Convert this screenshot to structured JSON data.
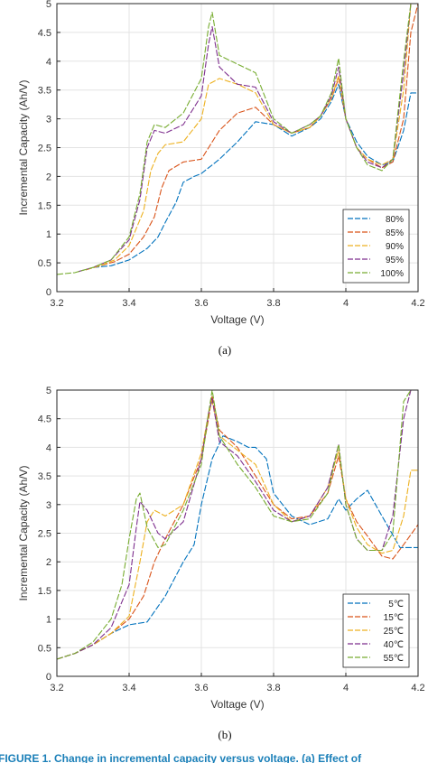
{
  "figure": {
    "caption": "FIGURE 1. Change in incremental capacity versus voltage. (a) Effect of"
  },
  "chart_data": [
    {
      "type": "line",
      "panel_label": "(a)",
      "xlabel": "Voltage (V)",
      "ylabel": "Incremental Capacity (Ah/V)",
      "xlim": [
        3.2,
        4.2
      ],
      "ylim": [
        0,
        5
      ],
      "xticks": [
        3.2,
        3.4,
        3.6,
        3.8,
        4,
        4.2
      ],
      "xtick_labels": [
        "3.2",
        "3.4",
        "3.6",
        "3.8",
        "4",
        "4.2"
      ],
      "yticks": [
        0,
        0.5,
        1,
        1.5,
        2,
        2.5,
        3,
        3.5,
        4,
        4.5,
        5
      ],
      "ytick_labels": [
        "0",
        "0.5",
        "1",
        "1.5",
        "2",
        "2.5",
        "3",
        "3.5",
        "4",
        "4.5",
        "5"
      ],
      "grid": true,
      "legend_position": "bottom-right",
      "series": [
        {
          "name": "80%",
          "color": "#0072BD",
          "x": [
            3.3,
            3.35,
            3.4,
            3.45,
            3.48,
            3.5,
            3.53,
            3.55,
            3.58,
            3.6,
            3.65,
            3.7,
            3.75,
            3.8,
            3.85,
            3.9,
            3.93,
            3.96,
            3.98,
            4.0,
            4.03,
            4.06,
            4.1,
            4.13,
            4.16,
            4.18,
            4.2
          ],
          "y": [
            0.42,
            0.45,
            0.55,
            0.75,
            0.95,
            1.2,
            1.55,
            1.9,
            2.0,
            2.05,
            2.3,
            2.6,
            2.95,
            2.9,
            2.7,
            2.85,
            3.0,
            3.3,
            3.6,
            3.0,
            2.6,
            2.35,
            2.2,
            2.25,
            2.8,
            3.45,
            3.45
          ]
        },
        {
          "name": "85%",
          "color": "#D95319",
          "x": [
            3.28,
            3.32,
            3.36,
            3.4,
            3.44,
            3.47,
            3.49,
            3.51,
            3.55,
            3.6,
            3.65,
            3.7,
            3.75,
            3.8,
            3.85,
            3.9,
            3.93,
            3.96,
            3.98,
            4.0,
            4.03,
            4.06,
            4.1,
            4.13,
            4.16,
            4.18,
            4.2
          ],
          "y": [
            0.38,
            0.45,
            0.52,
            0.65,
            0.95,
            1.3,
            1.8,
            2.1,
            2.25,
            2.3,
            2.8,
            3.1,
            3.2,
            2.9,
            2.75,
            2.85,
            3.05,
            3.35,
            3.7,
            3.0,
            2.5,
            2.3,
            2.15,
            2.25,
            3.0,
            4.5,
            5.0
          ]
        },
        {
          "name": "90%",
          "color": "#EDB120",
          "x": [
            3.28,
            3.32,
            3.36,
            3.4,
            3.44,
            3.46,
            3.48,
            3.5,
            3.55,
            3.6,
            3.62,
            3.65,
            3.7,
            3.75,
            3.8,
            3.85,
            3.9,
            3.93,
            3.96,
            3.98,
            4.0,
            4.03,
            4.06,
            4.1,
            4.13,
            4.16,
            4.18
          ],
          "y": [
            0.38,
            0.45,
            0.55,
            0.8,
            1.4,
            2.1,
            2.4,
            2.55,
            2.6,
            3.0,
            3.6,
            3.7,
            3.6,
            3.45,
            2.9,
            2.75,
            2.85,
            3.05,
            3.35,
            3.75,
            3.0,
            2.5,
            2.3,
            2.2,
            2.3,
            3.5,
            5.0
          ]
        },
        {
          "name": "95%",
          "color": "#7E2F8E",
          "x": [
            3.26,
            3.3,
            3.35,
            3.4,
            3.43,
            3.45,
            3.47,
            3.5,
            3.55,
            3.6,
            3.62,
            3.63,
            3.65,
            3.7,
            3.75,
            3.8,
            3.85,
            3.9,
            3.93,
            3.96,
            3.98,
            4.0,
            4.03,
            4.06,
            4.1,
            4.13,
            4.16,
            4.18
          ],
          "y": [
            0.35,
            0.42,
            0.55,
            0.9,
            1.6,
            2.5,
            2.8,
            2.75,
            2.9,
            3.4,
            4.3,
            4.6,
            3.9,
            3.6,
            3.55,
            2.95,
            2.75,
            2.9,
            3.05,
            3.4,
            3.9,
            3.0,
            2.5,
            2.25,
            2.15,
            2.3,
            3.8,
            5.0
          ]
        },
        {
          "name": "100%",
          "color": "#77AC30",
          "x": [
            3.2,
            3.25,
            3.3,
            3.35,
            3.4,
            3.43,
            3.45,
            3.47,
            3.5,
            3.55,
            3.6,
            3.62,
            3.63,
            3.65,
            3.7,
            3.75,
            3.8,
            3.85,
            3.9,
            3.93,
            3.96,
            3.98,
            4.0,
            4.03,
            4.06,
            4.1,
            4.13,
            4.16,
            4.18
          ],
          "y": [
            0.3,
            0.33,
            0.42,
            0.55,
            0.95,
            1.7,
            2.6,
            2.9,
            2.85,
            3.1,
            3.7,
            4.6,
            4.85,
            4.1,
            3.95,
            3.8,
            3.0,
            2.75,
            2.9,
            3.05,
            3.45,
            4.05,
            3.0,
            2.5,
            2.2,
            2.1,
            2.3,
            4.0,
            5.0
          ]
        }
      ]
    },
    {
      "type": "line",
      "panel_label": "(b)",
      "xlabel": "Voltage (V)",
      "ylabel": "Incremental Capacity (Ah/V)",
      "xlim": [
        3.2,
        4.2
      ],
      "ylim": [
        0,
        5
      ],
      "xticks": [
        3.2,
        3.4,
        3.6,
        3.8,
        4,
        4.2
      ],
      "xtick_labels": [
        "3.2",
        "3.4",
        "3.6",
        "3.8",
        "4",
        "4.2"
      ],
      "yticks": [
        0,
        0.5,
        1,
        1.5,
        2,
        2.5,
        3,
        3.5,
        4,
        4.5,
        5
      ],
      "ytick_labels": [
        "0",
        "0.5",
        "1",
        "1.5",
        "2",
        "2.5",
        "3",
        "3.5",
        "4",
        "4.5",
        "5"
      ],
      "grid": true,
      "legend_position": "bottom-right",
      "series": [
        {
          "name": "5℃",
          "color": "#0072BD",
          "x": [
            3.2,
            3.25,
            3.3,
            3.35,
            3.4,
            3.45,
            3.5,
            3.55,
            3.58,
            3.6,
            3.63,
            3.66,
            3.7,
            3.73,
            3.75,
            3.78,
            3.8,
            3.85,
            3.9,
            3.95,
            3.98,
            4.0,
            4.03,
            4.06,
            4.1,
            4.15,
            4.2
          ],
          "y": [
            0.3,
            0.4,
            0.55,
            0.75,
            0.9,
            0.95,
            1.4,
            2.0,
            2.3,
            3.0,
            3.8,
            4.2,
            4.1,
            4.0,
            4.0,
            3.8,
            3.2,
            2.8,
            2.65,
            2.75,
            3.1,
            2.9,
            3.1,
            3.25,
            2.8,
            2.25,
            2.25
          ]
        },
        {
          "name": "15℃",
          "color": "#D95319",
          "x": [
            3.2,
            3.25,
            3.3,
            3.35,
            3.4,
            3.44,
            3.47,
            3.5,
            3.55,
            3.6,
            3.62,
            3.63,
            3.65,
            3.7,
            3.75,
            3.8,
            3.85,
            3.9,
            3.95,
            3.98,
            4.0,
            4.03,
            4.06,
            4.1,
            4.13,
            4.16,
            4.2
          ],
          "y": [
            0.3,
            0.4,
            0.55,
            0.75,
            1.0,
            1.4,
            2.0,
            2.4,
            3.0,
            3.8,
            4.5,
            4.9,
            4.3,
            4.0,
            3.5,
            3.0,
            2.75,
            2.8,
            3.2,
            3.85,
            3.1,
            2.7,
            2.45,
            2.1,
            2.05,
            2.3,
            2.65
          ]
        },
        {
          "name": "25℃",
          "color": "#EDB120",
          "x": [
            3.2,
            3.25,
            3.3,
            3.35,
            3.4,
            3.43,
            3.45,
            3.47,
            3.5,
            3.55,
            3.6,
            3.62,
            3.63,
            3.65,
            3.7,
            3.75,
            3.8,
            3.85,
            3.9,
            3.95,
            3.98,
            4.0,
            4.03,
            4.06,
            4.1,
            4.13,
            4.16,
            4.18,
            4.2
          ],
          "y": [
            0.3,
            0.4,
            0.55,
            0.75,
            1.05,
            2.0,
            2.7,
            2.9,
            2.8,
            3.0,
            3.9,
            4.6,
            4.8,
            4.2,
            3.95,
            3.7,
            3.0,
            2.7,
            2.8,
            3.3,
            3.95,
            3.1,
            2.6,
            2.3,
            2.15,
            2.2,
            2.8,
            3.6,
            3.6
          ]
        },
        {
          "name": "40℃",
          "color": "#7E2F8E",
          "x": [
            3.2,
            3.25,
            3.3,
            3.35,
            3.4,
            3.42,
            3.43,
            3.45,
            3.48,
            3.5,
            3.55,
            3.6,
            3.62,
            3.63,
            3.65,
            3.7,
            3.75,
            3.8,
            3.85,
            3.9,
            3.95,
            3.98,
            4.0,
            4.03,
            4.06,
            4.1,
            4.13,
            4.16,
            4.18
          ],
          "y": [
            0.3,
            0.4,
            0.55,
            0.85,
            1.6,
            2.6,
            3.05,
            2.9,
            2.5,
            2.4,
            2.7,
            3.8,
            4.6,
            4.85,
            4.1,
            3.85,
            3.4,
            2.9,
            2.7,
            2.8,
            3.3,
            4.05,
            3.0,
            2.4,
            2.2,
            2.2,
            2.8,
            4.5,
            5.0
          ]
        },
        {
          "name": "55℃",
          "color": "#77AC30",
          "x": [
            3.2,
            3.25,
            3.3,
            3.35,
            3.38,
            3.4,
            3.42,
            3.43,
            3.45,
            3.48,
            3.5,
            3.55,
            3.6,
            3.62,
            3.63,
            3.65,
            3.7,
            3.75,
            3.8,
            3.85,
            3.9,
            3.95,
            3.98,
            4.0,
            4.03,
            4.06,
            4.1,
            4.13,
            4.16,
            4.18
          ],
          "y": [
            0.3,
            0.4,
            0.6,
            1.0,
            1.6,
            2.4,
            3.1,
            3.2,
            2.6,
            2.25,
            2.3,
            2.9,
            3.7,
            4.6,
            5.0,
            4.2,
            3.7,
            3.3,
            2.8,
            2.7,
            2.75,
            3.2,
            4.05,
            3.0,
            2.4,
            2.2,
            2.2,
            2.5,
            4.8,
            5.0
          ]
        }
      ]
    }
  ]
}
